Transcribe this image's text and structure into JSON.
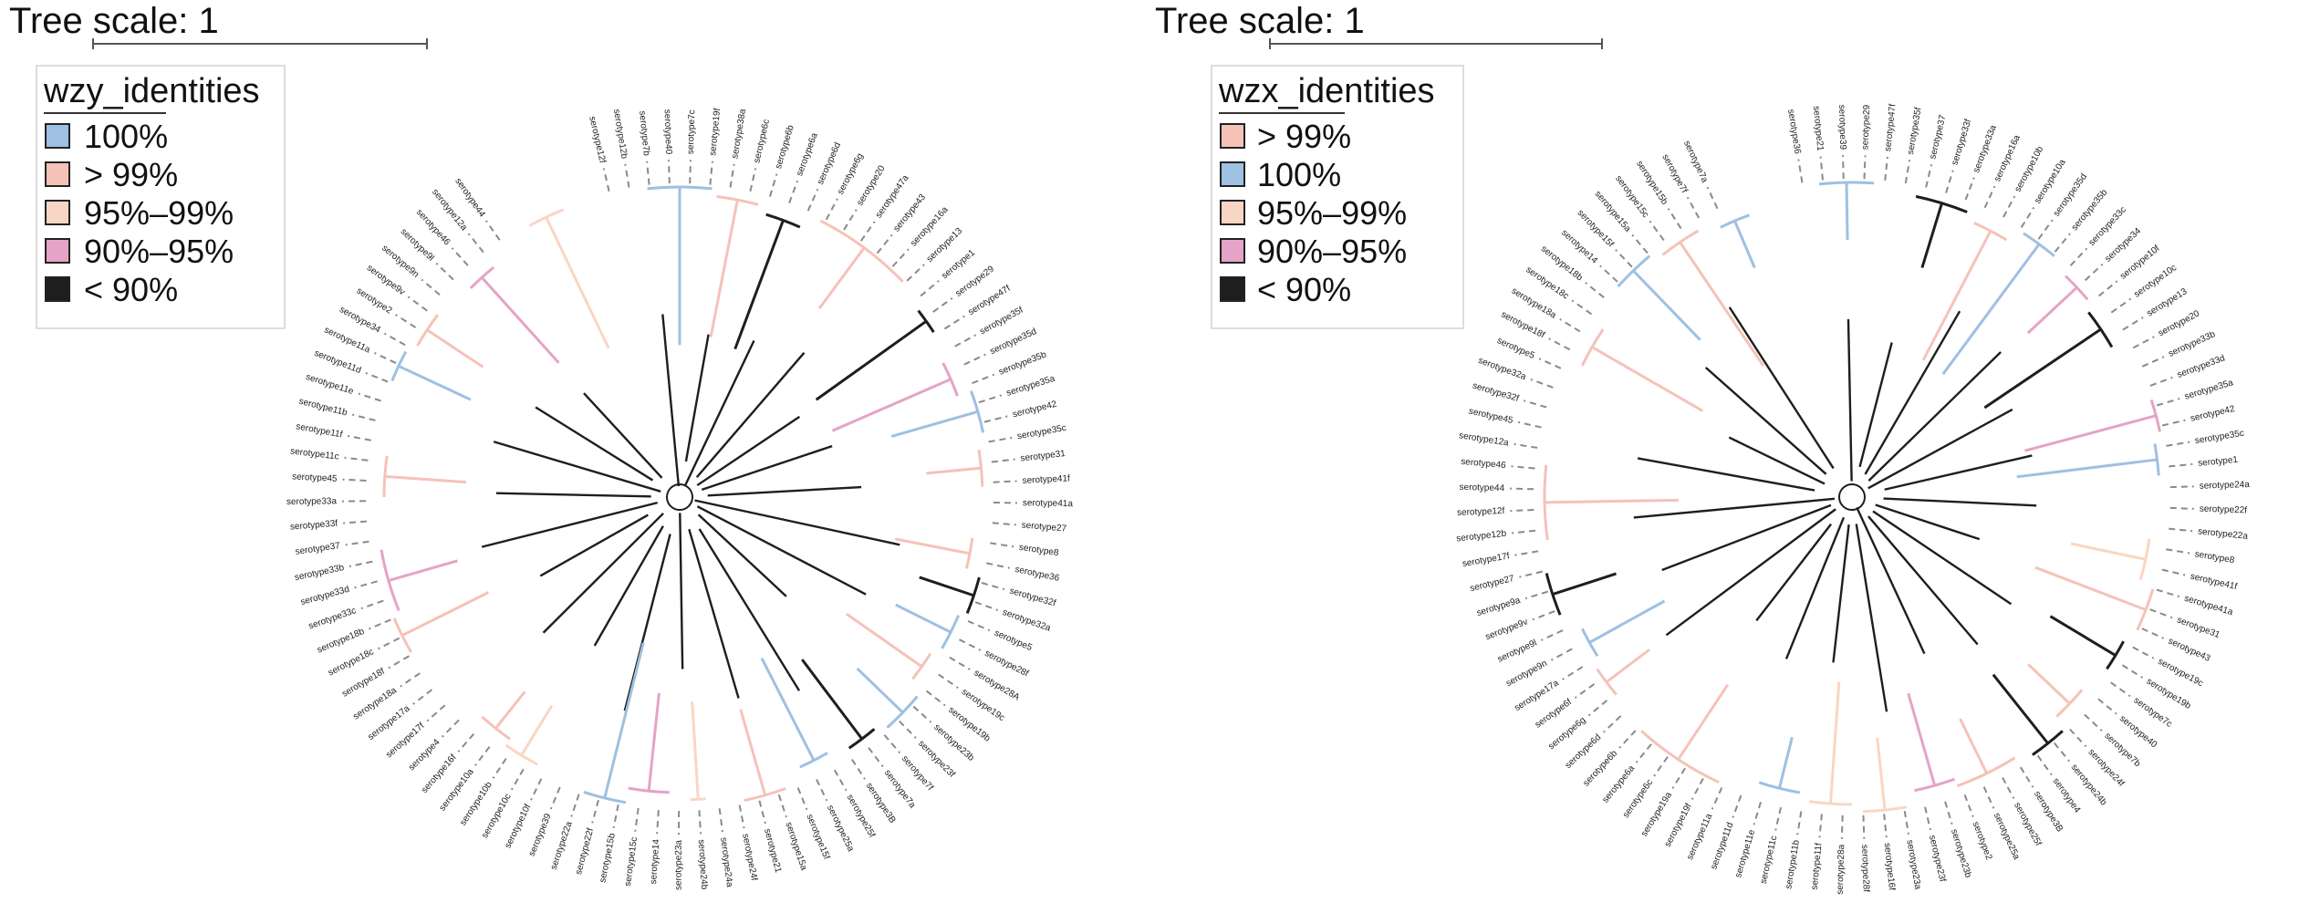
{
  "colors": {
    "100%": "#9ec0e2",
    "> 99%": "#f5c2b8",
    "95%–99%": "#f9d6c3",
    "90%–95%": "#e5a3c7",
    "< 90%": "#1e1e1e",
    "dash": "#8a8a8a",
    "scale_bar": "#555555",
    "legend_border": "#dddddd"
  },
  "panels": [
    {
      "scale_label": "Tree scale: 1",
      "legend": {
        "title": "wzy_identities",
        "items": [
          {
            "label": "100%",
            "color": "#9ec0e2"
          },
          {
            "label": "> 99%",
            "color": "#f5c2b8"
          },
          {
            "label": "95%–99%",
            "color": "#f9d6c3"
          },
          {
            "label": "90%–95%",
            "color": "#e5a3c7"
          },
          {
            "label": "< 90%",
            "color": "#1e1e1e"
          }
        ]
      },
      "leaves": [
        "serotype12f",
        "serotype12b",
        "serotype7b",
        "serotype40",
        "serotype7c",
        "serotype19f",
        "serotype38a",
        "serotype6c",
        "serotype6b",
        "serotype6a",
        "serotype6d",
        "serotype6g",
        "serotype20",
        "serotype47a",
        "serotype43",
        "serotype16a",
        "serotype13",
        "serotype1",
        "serotype29",
        "serotype47f",
        "serotype35f",
        "serotype35d",
        "serotype35b",
        "serotype35a",
        "serotype42",
        "serotype35c",
        "serotype31",
        "serotype41f",
        "serotype41a",
        "serotype27",
        "serotype8",
        "serotype36",
        "serotype32f",
        "serotype32a",
        "serotype5",
        "serotype28f",
        "serotype28A",
        "serotype19c",
        "serotype19b",
        "serotype23b",
        "serotype23f",
        "serotype7f",
        "serotype7a",
        "serotype3B",
        "serotype25f",
        "serotype25a",
        "serotype15f",
        "serotype15a",
        "serotype21",
        "serotype24f",
        "serotype24a",
        "serotype24b",
        "serotype23a",
        "serotype14",
        "serotype15c",
        "serotype15b",
        "serotype22f",
        "serotype22a",
        "serotype39",
        "serotype10f",
        "serotype10c",
        "serotype10b",
        "serotype10a",
        "serotype16f",
        "serotype4",
        "serotype17f",
        "serotype17a",
        "serotype18a",
        "serotype18f",
        "serotype18c",
        "serotype18b",
        "serotype33c",
        "serotype33d",
        "serotype33b",
        "serotype37",
        "serotype33f",
        "serotype33a",
        "serotype45",
        "serotype11c",
        "serotype11f",
        "serotype11b",
        "serotype11e",
        "serotype11d",
        "serotype11a",
        "serotype34",
        "serotype2",
        "serotype9v",
        "serotype9n",
        "serotype9l",
        "serotype46",
        "serotype12a",
        "serotype44"
      ],
      "clades": [
        {
          "a0": -6,
          "a1": 6,
          "color": "100%"
        },
        {
          "a0": 7,
          "a1": 15,
          "color": "> 99%"
        },
        {
          "a0": 17,
          "a1": 24,
          "color": "< 90%"
        },
        {
          "a0": 27,
          "a1": 46,
          "color": "> 99%"
        },
        {
          "a0": 52,
          "a1": 57,
          "color": "< 90%"
        },
        {
          "a0": 63,
          "a1": 70,
          "color": "90%–95%"
        },
        {
          "a0": 70,
          "a1": 78,
          "color": "100%"
        },
        {
          "a0": 81,
          "a1": 88,
          "color": "> 99%"
        },
        {
          "a0": 98,
          "a1": 104,
          "color": "> 99%"
        },
        {
          "a0": 105,
          "a1": 112,
          "color": "< 90%"
        },
        {
          "a0": 113,
          "a1": 120,
          "color": "100%"
        },
        {
          "a0": 122,
          "a1": 128,
          "color": "> 99%"
        },
        {
          "a0": 130,
          "a1": 138,
          "color": "100%"
        },
        {
          "a0": 140,
          "a1": 146,
          "color": "< 90%"
        },
        {
          "a0": 150,
          "a1": 156,
          "color": "100%"
        },
        {
          "a0": 160,
          "a1": 168,
          "color": "> 99%"
        },
        {
          "a0": 175,
          "a1": 178,
          "color": "95%–99%"
        },
        {
          "a0": 182,
          "a1": 190,
          "color": "90%–95%"
        },
        {
          "a0": 190,
          "a1": 198,
          "color": "100%"
        },
        {
          "a0": 208,
          "a1": 215,
          "color": "95%–99%"
        },
        {
          "a0": 215,
          "a1": 222,
          "color": "> 99%"
        },
        {
          "a0": 240,
          "a1": 247,
          "color": "> 99%"
        },
        {
          "a0": 248,
          "a1": 260,
          "color": "90%–95%"
        },
        {
          "a0": 270,
          "a1": 278,
          "color": "> 99%"
        },
        {
          "a0": 292,
          "a1": 298,
          "color": "100%"
        },
        {
          "a0": 300,
          "a1": 307,
          "color": "> 99%"
        },
        {
          "a0": 315,
          "a1": 321,
          "color": "90%–95%"
        },
        {
          "a0": 331,
          "a1": 338,
          "color": "95%–99%"
        }
      ]
    },
    {
      "scale_label": "Tree scale: 1",
      "legend": {
        "title": "wzx_identities",
        "items": [
          {
            "label": "> 99%",
            "color": "#f5c2b8"
          },
          {
            "label": "100%",
            "color": "#9ec0e2"
          },
          {
            "label": "95%–99%",
            "color": "#f9d6c3"
          },
          {
            "label": "90%–95%",
            "color": "#e5a3c7"
          },
          {
            "label": "< 90%",
            "color": "#1e1e1e"
          }
        ]
      },
      "leaves": [
        "serotype36",
        "serotype21",
        "serotype39",
        "serotype29",
        "serotype47f",
        "serotype35f",
        "serotype37",
        "serotype33f",
        "serotype33a",
        "serotype16a",
        "serotype10b",
        "serotype10a",
        "serotype35d",
        "serotype35b",
        "serotype33c",
        "serotype34",
        "serotype10f",
        "serotype10c",
        "serotype13",
        "serotype20",
        "serotype33b",
        "serotype33d",
        "serotype35a",
        "serotype42",
        "serotype35c",
        "serotype1",
        "serotype24a",
        "serotype22f",
        "serotype22a",
        "serotype8",
        "serotype41f",
        "serotype41a",
        "serotype31",
        "serotype43",
        "serotype19c",
        "serotype19b",
        "serotype7c",
        "serotype40",
        "serotype7b",
        "serotype24f",
        "serotype24b",
        "serotype4",
        "serotype3B",
        "serotype25f",
        "serotype25a",
        "serotype2",
        "serotype23b",
        "serotype23f",
        "serotype23a",
        "serotype16f",
        "serotype28f",
        "serotype28a",
        "serotype11f",
        "serotype11b",
        "serotype11c",
        "serotype11e",
        "serotype11d",
        "serotype11a",
        "serotype19f",
        "serotype19a",
        "serotype6c",
        "serotype6a",
        "serotype6b",
        "serotype6d",
        "serotype6g",
        "serotype6f",
        "serotype17a",
        "serotype9n",
        "serotype9l",
        "serotype9v",
        "serotype9a",
        "serotype27",
        "serotype17f",
        "serotype12b",
        "serotype12f",
        "serotype44",
        "serotype46",
        "serotype12a",
        "serotype45",
        "serotype32f",
        "serotype32a",
        "serotype5",
        "serotype18f",
        "serotype18a",
        "serotype18c",
        "serotype18b",
        "serotype14",
        "serotype15f",
        "serotype15a",
        "serotype15c",
        "serotype15b",
        "serotype7f",
        "serotype7a"
      ],
      "clades": [
        {
          "a0": -6,
          "a1": 4,
          "color": "100%"
        },
        {
          "a0": 12,
          "a1": 22,
          "color": "< 90%"
        },
        {
          "a0": 24,
          "a1": 31,
          "color": "> 99%"
        },
        {
          "a0": 33,
          "a1": 40,
          "color": "100%"
        },
        {
          "a0": 44,
          "a1": 50,
          "color": "90%–95%"
        },
        {
          "a0": 52,
          "a1": 60,
          "color": "< 90%"
        },
        {
          "a0": 72,
          "a1": 78,
          "color": "90%–95%"
        },
        {
          "a0": 80,
          "a1": 86,
          "color": "100%"
        },
        {
          "a0": 98,
          "a1": 106,
          "color": "95%–99%"
        },
        {
          "a0": 107,
          "a1": 115,
          "color": "> 99%"
        },
        {
          "a0": 118,
          "a1": 124,
          "color": "< 90%"
        },
        {
          "a0": 130,
          "a1": 137,
          "color": "> 99%"
        },
        {
          "a0": 138,
          "a1": 145,
          "color": "< 90%"
        },
        {
          "a0": 148,
          "a1": 160,
          "color": "> 99%"
        },
        {
          "a0": 160,
          "a1": 168,
          "color": "90%–95%"
        },
        {
          "a0": 170,
          "a1": 178,
          "color": "95%–99%"
        },
        {
          "a0": 180,
          "a1": 188,
          "color": "95%–99%"
        },
        {
          "a0": 190,
          "a1": 198,
          "color": "100%"
        },
        {
          "a0": 205,
          "a1": 222,
          "color": "> 99%"
        },
        {
          "a0": 230,
          "a1": 236,
          "color": "> 99%"
        },
        {
          "a0": 238,
          "a1": 244,
          "color": "100%"
        },
        {
          "a0": 248,
          "a1": 256,
          "color": "< 90%"
        },
        {
          "a0": 262,
          "a1": 276,
          "color": "> 99%"
        },
        {
          "a0": 296,
          "a1": 304,
          "color": "> 99%"
        },
        {
          "a0": 312,
          "a1": 320,
          "color": "100%"
        },
        {
          "a0": 322,
          "a1": 330,
          "color": "> 99%"
        },
        {
          "a0": 334,
          "a1": 340,
          "color": "100%"
        }
      ]
    }
  ]
}
